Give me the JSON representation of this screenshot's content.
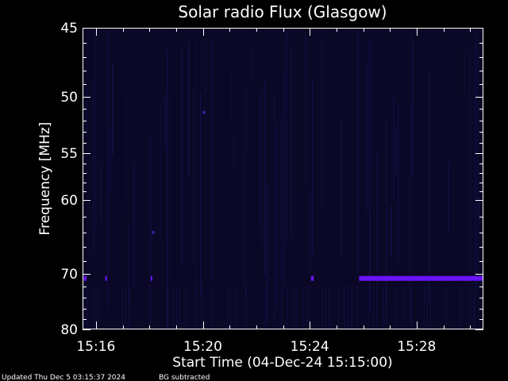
{
  "chart_data": {
    "type": "heatmap",
    "title": "Solar radio Flux (Glasgow)",
    "xlabel": "Start Time (04-Dec-24 15:15:00)",
    "ylabel": "Frequency [MHz]",
    "x_unit": "minutes after 15:15:00",
    "xlim": [
      0.5,
      15.5
    ],
    "ylim": [
      45,
      80
    ],
    "y_inverted": true,
    "x_ticks": [
      {
        "value": 1,
        "label": "15:16"
      },
      {
        "value": 5,
        "label": "15:20"
      },
      {
        "value": 9,
        "label": "15:24"
      },
      {
        "value": 13,
        "label": "15:28"
      }
    ],
    "y_ticks": [
      {
        "value": 45,
        "label": "45"
      },
      {
        "value": 50,
        "label": "50"
      },
      {
        "value": 55,
        "label": "55"
      },
      {
        "value": 60,
        "label": "60"
      },
      {
        "value": 70,
        "label": "70"
      },
      {
        "value": 80,
        "label": "80"
      }
    ],
    "y_minor_ticks": [
      46,
      47,
      48,
      49,
      51,
      52,
      53,
      54,
      56,
      57,
      58,
      59,
      62,
      64,
      66,
      68,
      72,
      74,
      76,
      78
    ],
    "background_color": "#0a0826",
    "emission_color": "#6a14ff",
    "emission_segments": [
      {
        "freq": 70.7,
        "x_start": 0.55,
        "x_end": 0.65
      },
      {
        "freq": 70.7,
        "x_start": 1.35,
        "x_end": 1.4
      },
      {
        "freq": 70.7,
        "x_start": 3.05,
        "x_end": 3.1
      },
      {
        "freq": 70.7,
        "x_start": 9.05,
        "x_end": 9.15
      },
      {
        "freq": 70.7,
        "x_start": 10.85,
        "x_end": 15.5
      }
    ],
    "weak_features": [
      {
        "freq": 51.3,
        "x_start": 5.0,
        "x_end": 5.1
      },
      {
        "freq": 64.0,
        "x_start": 3.1,
        "x_end": 3.2
      }
    ]
  },
  "footer": {
    "updated": "Updated Thu Dec  5 03:15:37 2024",
    "bg_note": "BG subtracted"
  },
  "colors": {
    "page_background": "#000000",
    "axis": "#ffffff",
    "text": "#ffffff"
  }
}
